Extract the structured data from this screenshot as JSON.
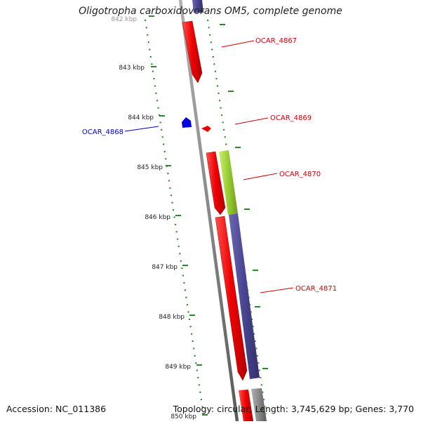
{
  "title": "Oligotropha carboxidovorans OM5, complete genome",
  "footer": {
    "accession": "Accession: NC_011386",
    "info": "Topology: circular; Length: 3,745,629 bp; Genes: 3,770"
  },
  "ticks": [
    "842 kbp",
    "843 kbp",
    "844 kbp",
    "845 kbp",
    "846 kbp",
    "847 kbp",
    "848 kbp",
    "849 kbp",
    "850 kbp"
  ],
  "genes": [
    {
      "name": "OCAR_4867",
      "color": "#cc0000"
    },
    {
      "name": "OCAR_4868",
      "color": "#0000cc"
    },
    {
      "name": "OCAR_4869",
      "color": "#cc0000"
    },
    {
      "name": "OCAR_4870",
      "color": "#cc0000"
    },
    {
      "name": "OCAR_4871",
      "color": "#cc0000"
    }
  ],
  "colors": {
    "backbone": "#888888",
    "cds_forward": "#ee0000",
    "cds_reverse": "#0000dd",
    "feature_green": "#99cc33",
    "feature_purple": "#4a4590",
    "tick_dots": "#2a8a2a"
  }
}
